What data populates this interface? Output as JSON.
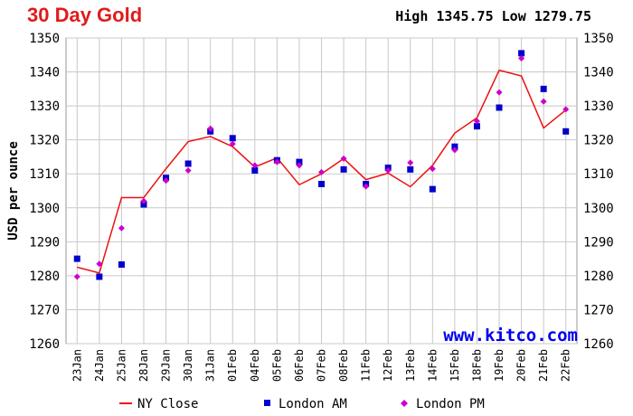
{
  "header": {
    "title": "30 Day Gold",
    "high_label": "High",
    "high_value": "1345.75",
    "low_label": "Low",
    "low_value": "1279.75"
  },
  "watermark": "www.kitco.com",
  "colors": {
    "title": "#e01b1b",
    "ny_close": "#ee1111",
    "london_am": "#0000cc",
    "london_pm": "#cc00cc",
    "watermark": "#0000ee"
  },
  "chart_data": {
    "type": "line",
    "title": "30 Day Gold",
    "ylabel": "USD per ounce",
    "xlabel": "",
    "ylim": [
      1260,
      1350
    ],
    "yticks": [
      1260,
      1270,
      1280,
      1290,
      1300,
      1310,
      1320,
      1330,
      1340,
      1350
    ],
    "grid": true,
    "legend_position": "bottom",
    "categories": [
      "23Jan",
      "24Jan",
      "25Jan",
      "28Jan",
      "29Jan",
      "30Jan",
      "31Jan",
      "01Feb",
      "04Feb",
      "05Feb",
      "06Feb",
      "07Feb",
      "08Feb",
      "11Feb",
      "12Feb",
      "13Feb",
      "14Feb",
      "15Feb",
      "18Feb",
      "19Feb",
      "20Feb",
      "21Feb",
      "22Feb"
    ],
    "series": [
      {
        "name": "NY Close",
        "style": "line",
        "values": [
          1282.5,
          1280.8,
          1303.0,
          1303.0,
          1311.5,
          1319.5,
          1321.0,
          1318.0,
          1312.0,
          1314.7,
          1306.8,
          1310.0,
          1314.5,
          1308.3,
          1310.2,
          1306.2,
          1312.5,
          1322.0,
          1326.5,
          1340.5,
          1338.8,
          1323.5,
          1328.8
        ]
      },
      {
        "name": "London AM",
        "style": "square",
        "values": [
          1285.0,
          1279.7,
          1283.3,
          1301.0,
          1308.8,
          1313.0,
          1322.5,
          1320.5,
          1311.0,
          1314.0,
          1313.5,
          1307.0,
          1311.3,
          1307.0,
          1311.8,
          1311.3,
          1305.5,
          1318.0,
          1324.0,
          1329.5,
          1345.5,
          1335.0,
          1322.5
        ]
      },
      {
        "name": "London PM",
        "style": "diamond",
        "values": [
          1279.7,
          1283.5,
          1294.0,
          1302.0,
          1308.0,
          1311.0,
          1323.3,
          1318.8,
          1312.5,
          1313.5,
          1312.5,
          1310.5,
          1314.5,
          1306.3,
          1311.0,
          1313.3,
          1311.5,
          1317.0,
          1325.5,
          1334.0,
          1344.0,
          1331.3,
          1329.0
        ]
      }
    ]
  }
}
